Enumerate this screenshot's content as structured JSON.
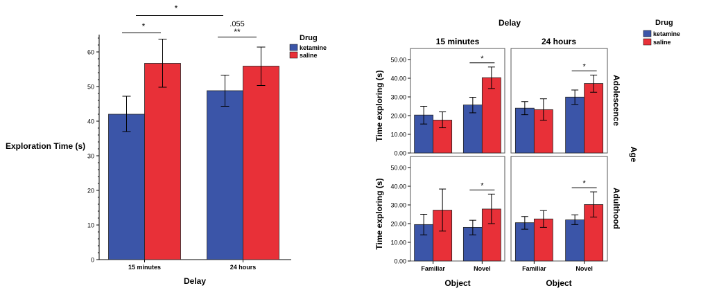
{
  "colors": {
    "ketamine": "#3b55a8",
    "saline": "#e83038",
    "axis": "#000000",
    "frame": "#555555"
  },
  "chart_data": [
    {
      "type": "bar",
      "title": "",
      "xlabel": "Delay",
      "ylabel": "Exploration Time (s)",
      "ylim": [
        0,
        65
      ],
      "yticks": [
        "0",
        "10",
        "20",
        "30",
        "40",
        "50",
        "60"
      ],
      "categories": [
        "15 minutes",
        "24 hours"
      ],
      "legend": {
        "title": "Drug",
        "position": "right",
        "entries": [
          "ketamine",
          "saline"
        ]
      },
      "series": [
        {
          "name": "ketamine",
          "values": [
            42.0,
            48.8
          ],
          "error": [
            [
              37.0,
              47.2
            ],
            [
              44.3,
              53.3
            ]
          ]
        },
        {
          "name": "saline",
          "values": [
            56.7,
            55.9
          ],
          "error": [
            [
              49.8,
              63.7
            ],
            [
              50.3,
              61.4
            ]
          ]
        }
      ],
      "annotations": [
        {
          "text": "*",
          "between": "15 minutes ketamine vs saline"
        },
        {
          "text": "**",
          "between": "24 hours ketamine vs saline"
        },
        {
          "text": ".055",
          "between": "24 hours"
        },
        {
          "text": "*",
          "between": "15 minutes vs 24 hours"
        }
      ]
    },
    {
      "type": "bar",
      "title": "",
      "column_header": "Delay",
      "row_header": "Age",
      "columns": [
        "15 minutes",
        "24 hours"
      ],
      "rows": [
        "Adolescence",
        "Adulthood"
      ],
      "xlabel": "Object",
      "ylabel": "Time exploring (s)",
      "ylim": [
        0,
        50
      ],
      "yticks": [
        "0.00",
        "10.00",
        "20.00",
        "30.00",
        "40.00",
        "50.00"
      ],
      "categories": [
        "Familiar",
        "Novel"
      ],
      "legend": {
        "title": "Drug",
        "position": "top-right",
        "entries": [
          "ketamine",
          "saline"
        ]
      },
      "panels": [
        {
          "row": "Adolescence",
          "column": "15 minutes",
          "series": [
            {
              "name": "ketamine",
              "values": [
                20.3,
                25.7
              ],
              "error": [
                [
                  15.5,
                  25.0
                ],
                [
                  21.5,
                  29.8
                ]
              ]
            },
            {
              "name": "saline",
              "values": [
                17.6,
                40.3
              ],
              "error": [
                [
                  13.5,
                  22.0
                ],
                [
                  34.5,
                  46.0
                ]
              ]
            }
          ],
          "annotation": "*"
        },
        {
          "row": "Adolescence",
          "column": "24 hours",
          "series": [
            {
              "name": "ketamine",
              "values": [
                24.0,
                29.9
              ],
              "error": [
                [
                  20.5,
                  27.5
                ],
                [
                  26.0,
                  33.7
                ]
              ]
            },
            {
              "name": "saline",
              "values": [
                23.2,
                37.2
              ],
              "error": [
                [
                  17.5,
                  29.0
                ],
                [
                  32.5,
                  41.7
                ]
              ]
            }
          ],
          "annotation": "*"
        },
        {
          "row": "Adulthood",
          "column": "15 minutes",
          "series": [
            {
              "name": "ketamine",
              "values": [
                19.5,
                18.0
              ],
              "error": [
                [
                  14.0,
                  25.0
                ],
                [
                  14.0,
                  21.8
                ]
              ]
            },
            {
              "name": "saline",
              "values": [
                27.2,
                27.8
              ],
              "error": [
                [
                  16.0,
                  38.5
                ],
                [
                  20.0,
                  35.8
                ]
              ]
            }
          ],
          "annotation": "*"
        },
        {
          "row": "Adulthood",
          "column": "24 hours",
          "series": [
            {
              "name": "ketamine",
              "values": [
                20.5,
                22.0
              ],
              "error": [
                [
                  17.0,
                  23.8
                ],
                [
                  19.5,
                  24.7
                ]
              ]
            },
            {
              "name": "saline",
              "values": [
                22.5,
                30.2
              ],
              "error": [
                [
                  18.0,
                  27.0
                ],
                [
                  23.5,
                  37.0
                ]
              ]
            }
          ],
          "annotation": "*"
        }
      ]
    }
  ]
}
